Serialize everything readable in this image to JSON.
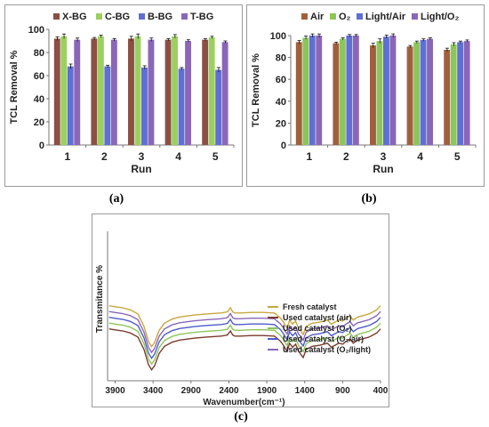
{
  "chart_data": [
    {
      "panel_label": "(a)",
      "type": "bar",
      "title": "",
      "xlabel": "Run",
      "ylabel": "TCL Removal %",
      "ylim": [
        0,
        100
      ],
      "yticks": [
        0,
        20,
        40,
        60,
        80,
        100
      ],
      "categories": [
        "1",
        "2",
        "3",
        "4",
        "5"
      ],
      "legend_position": "top",
      "grid": false,
      "series": [
        {
          "name": "X-BG",
          "color": "#8b4f44",
          "values": [
            92,
            92,
            92,
            91,
            91
          ],
          "errors": [
            1.5,
            1,
            2,
            1,
            1
          ]
        },
        {
          "name": "C-BG",
          "color": "#9bd060",
          "values": [
            94,
            94,
            94,
            94,
            93
          ],
          "errors": [
            2,
            1,
            2,
            1.5,
            1
          ]
        },
        {
          "name": "B-BG",
          "color": "#5f6fd3",
          "values": [
            68,
            68,
            67,
            66,
            65
          ],
          "errors": [
            2,
            1,
            1.5,
            1,
            2
          ]
        },
        {
          "name": "T-BG",
          "color": "#8a66b8",
          "values": [
            91,
            91,
            91,
            90,
            89
          ],
          "errors": [
            1.5,
            1,
            1.5,
            1,
            1
          ]
        }
      ]
    },
    {
      "panel_label": "(b)",
      "type": "bar",
      "title": "",
      "xlabel": "Run",
      "ylabel": "TCL Removal %",
      "ylim": [
        0,
        100
      ],
      "yticks": [
        0,
        20,
        40,
        60,
        80,
        100
      ],
      "categories": [
        "1",
        "2",
        "3",
        "4",
        "5"
      ],
      "legend_position": "top",
      "grid": false,
      "series": [
        {
          "name": "Air",
          "color": "#a0603d",
          "values": [
            94,
            93,
            91,
            90,
            87
          ],
          "errors": [
            1.5,
            1,
            2,
            1,
            1.5
          ]
        },
        {
          "name": "O₂",
          "color": "#8cc65a",
          "values": [
            98,
            97,
            95,
            94,
            92
          ],
          "errors": [
            1.5,
            1,
            2,
            1,
            1.5
          ]
        },
        {
          "name": "Light/Air",
          "color": "#5f6fd3",
          "values": [
            100,
            100,
            99,
            96,
            94
          ],
          "errors": [
            1.5,
            1,
            1.5,
            1,
            1
          ]
        },
        {
          "name": "Light/O₂",
          "color": "#8a66b8",
          "values": [
            100,
            100,
            100,
            97,
            95
          ],
          "errors": [
            1.5,
            1,
            1.5,
            1,
            1
          ]
        }
      ]
    },
    {
      "panel_label": "(c)",
      "type": "line",
      "title": "",
      "xlabel": "Wavenumber(cm⁻¹)",
      "ylabel": "Transmitance %",
      "xlim": [
        4000,
        400
      ],
      "xticks": [
        3900,
        3400,
        2900,
        2400,
        1900,
        1400,
        900,
        400
      ],
      "reversed_x": true,
      "legend_position": "bottom-right",
      "grid": false,
      "series": [
        {
          "name": "Fresh catalyst",
          "color": "#c8a740",
          "offset": 4
        },
        {
          "name": "Used catalyst (air)",
          "color": "#7a3b2e",
          "offset": 0
        },
        {
          "name": "Used catalyst (O₂)",
          "color": "#8cc65a",
          "offset": 1
        },
        {
          "name": "Used catalyst (O₂/air)",
          "color": "#4e5bc9",
          "offset": 2
        },
        {
          "name": "Used catalyst (O₂/light)",
          "color": "#8a66b8",
          "offset": 3
        }
      ],
      "spectrum_shape": {
        "x": [
          3980,
          3900,
          3800,
          3700,
          3600,
          3520,
          3460,
          3420,
          3380,
          3320,
          3250,
          3150,
          3050,
          2950,
          2850,
          2700,
          2500,
          2420,
          2380,
          2350,
          2320,
          2250,
          2100,
          1950,
          1800,
          1720,
          1680,
          1650,
          1630,
          1600,
          1560,
          1520,
          1480,
          1420,
          1380,
          1300,
          1200,
          1100,
          1050,
          1000,
          950,
          900,
          850,
          800,
          760,
          700,
          650,
          600,
          550,
          500,
          450,
          400
        ],
        "y": [
          80,
          79,
          78,
          76,
          72,
          60,
          45,
          40,
          44,
          56,
          63,
          67,
          69,
          70,
          71,
          72,
          73,
          74,
          78,
          74,
          73,
          73,
          73.5,
          73.5,
          73,
          68,
          64,
          60,
          58,
          66,
          62,
          65,
          58,
          52,
          60,
          63,
          64,
          66,
          62,
          64,
          66,
          65,
          68,
          70,
          66,
          69,
          70,
          71,
          72,
          74,
          76,
          80
        ]
      }
    }
  ]
}
